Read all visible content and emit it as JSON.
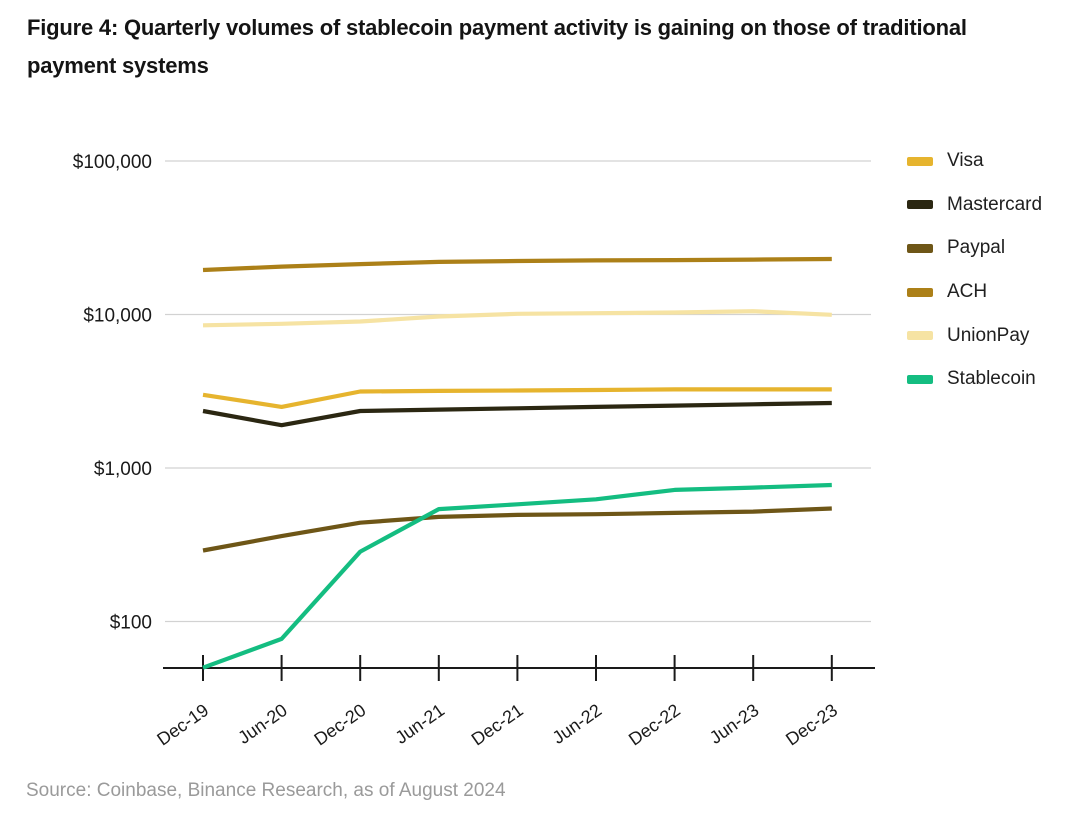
{
  "figure": {
    "title": "Figure 4: Quarterly volumes of stablecoin payment activity is gaining on those of traditional payment systems",
    "source": "Source: Coinbase, Binance Research, as of August 2024"
  },
  "colors": {
    "title_text": "#141414",
    "axis": "#1a1a1a",
    "grid": "#d2d2d2",
    "source_text": "#9a9a9a",
    "legend_text": "#202020"
  },
  "chart_data": {
    "type": "line",
    "title": "",
    "xlabel": "",
    "ylabel": "",
    "y_scale": "log",
    "ylim": [
      45,
      130000
    ],
    "grid": "horizontal",
    "legend_position": "right",
    "categories": [
      "Dec-19",
      "Jun-20",
      "Dec-20",
      "Jun-21",
      "Dec-21",
      "Jun-22",
      "Dec-22",
      "Jun-23",
      "Dec-23"
    ],
    "y_ticks": [
      {
        "value": 100,
        "label": "$100"
      },
      {
        "value": 1000,
        "label": "$1,000"
      },
      {
        "value": 10000,
        "label": "$10,000"
      },
      {
        "value": 100000,
        "label": "$100,000"
      }
    ],
    "series": [
      {
        "name": "Visa",
        "color": "#E6B42E",
        "values": [
          3000,
          2500,
          3150,
          3180,
          3200,
          3220,
          3250,
          3250,
          3250
        ]
      },
      {
        "name": "Mastercard",
        "color": "#2B2712",
        "values": [
          2350,
          1900,
          2350,
          2400,
          2450,
          2500,
          2550,
          2600,
          2650
        ]
      },
      {
        "name": "Paypal",
        "color": "#6E5617",
        "values": [
          290,
          360,
          440,
          480,
          495,
          500,
          510,
          520,
          545
        ]
      },
      {
        "name": "ACH",
        "color": "#AC8018",
        "values": [
          19500,
          20500,
          21300,
          22000,
          22300,
          22500,
          22600,
          22800,
          23000
        ]
      },
      {
        "name": "UnionPay",
        "color": "#F6E3A3",
        "values": [
          8500,
          8700,
          9000,
          9700,
          10100,
          10200,
          10300,
          10500,
          9950
        ]
      },
      {
        "name": "Stablecoin",
        "color": "#14BD81",
        "values": [
          50,
          77,
          285,
          540,
          580,
          625,
          720,
          745,
          775
        ]
      }
    ]
  }
}
